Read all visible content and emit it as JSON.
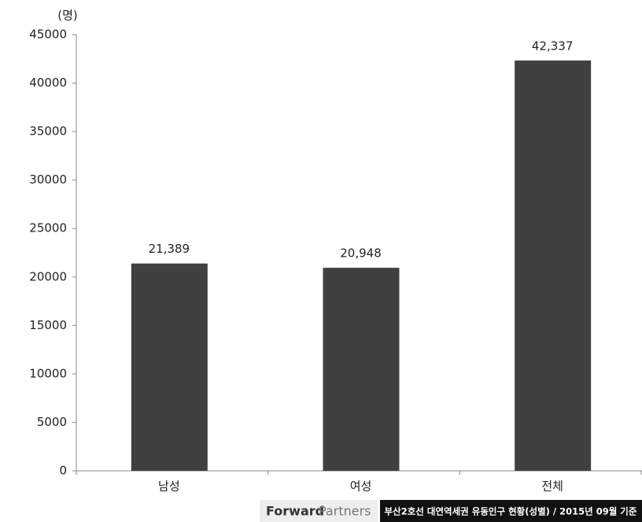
{
  "chart_data": {
    "type": "bar",
    "y_label": "(명)",
    "categories": [
      "남성",
      "여성",
      "전체"
    ],
    "values": [
      21389,
      20948,
      42337
    ],
    "value_labels": [
      "21,389",
      "20,948",
      "42,337"
    ],
    "color": "#404040",
    "ylim": [
      0,
      45000
    ],
    "yticks": [
      0,
      5000,
      10000,
      15000,
      20000,
      25000,
      30000,
      35000,
      40000,
      45000
    ]
  },
  "footer": {
    "brand_bold": "Forward",
    "brand_light": "Partners",
    "caption": "부산2호선 대연역세권 유동인구 현황(성별) / 2015년 09월 기준"
  }
}
